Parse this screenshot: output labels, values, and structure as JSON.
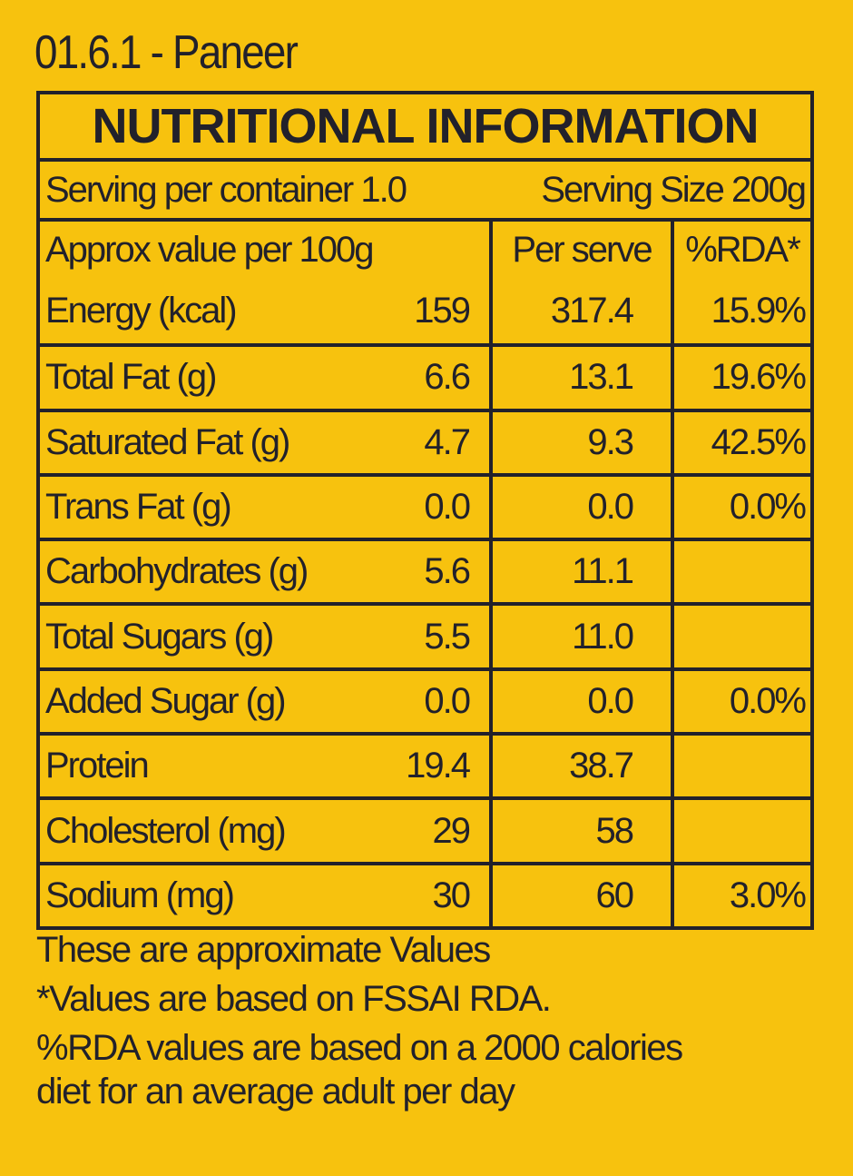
{
  "title": "01.6.1 - Paneer",
  "heading": "NUTRITIONAL INFORMATION",
  "serving_per_container": "Serving per container 1.0",
  "serving_size": "Serving Size 200g",
  "columns": [
    "Approx value per 100g",
    "Per serve",
    "%RDA*"
  ],
  "rows": [
    {
      "name": "Energy (kcal)",
      "per100": "159",
      "perServe": "317.4",
      "rda": "15.9%"
    },
    {
      "name": "Total Fat (g)",
      "per100": "6.6",
      "perServe": "13.1",
      "rda": "19.6%"
    },
    {
      "name": "Saturated Fat (g)",
      "per100": "4.7",
      "perServe": "9.3",
      "rda": "42.5%"
    },
    {
      "name": "Trans Fat (g)",
      "per100": "0.0",
      "perServe": "0.0",
      "rda": "0.0%"
    },
    {
      "name": "Carbohydrates (g)",
      "per100": "5.6",
      "perServe": "11.1",
      "rda": ""
    },
    {
      "name": "Total Sugars (g)",
      "per100": "5.5",
      "perServe": "11.0",
      "rda": ""
    },
    {
      "name": "Added Sugar (g)",
      "per100": "0.0",
      "perServe": "0.0",
      "rda": "0.0%"
    },
    {
      "name": "Protein",
      "per100": "19.4",
      "perServe": "38.7",
      "rda": ""
    },
    {
      "name": "Cholesterol (mg)",
      "per100": "29",
      "perServe": "58",
      "rda": ""
    },
    {
      "name": "Sodium (mg)",
      "per100": "30",
      "perServe": "60",
      "rda": "3.0%"
    }
  ],
  "notes": [
    "These are approximate Values",
    "*Values are based on FSSAI RDA.",
    "%RDA values are based on a 2000 calories",
    "diet for an average adult per day"
  ]
}
